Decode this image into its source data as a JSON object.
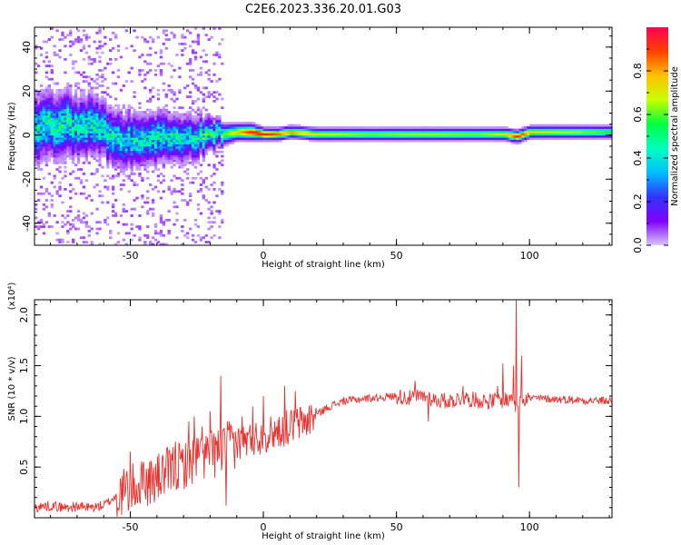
{
  "figure": {
    "title": "C2E6.2023.336.20.01.G03"
  },
  "chart_data": [
    {
      "type": "heatmap",
      "xlabel": "Height of straight line (km)",
      "ylabel": "Frequency (Hz)",
      "xlim": [
        -86,
        131
      ],
      "ylim": [
        -50,
        49
      ],
      "xticks": [
        "-50",
        "0",
        "50",
        "100"
      ],
      "yticks": [
        "40",
        "20",
        "0",
        "-20",
        "-40"
      ],
      "xtick_values": [
        -50,
        0,
        50,
        100
      ],
      "ytick_values": [
        40,
        20,
        0,
        -20,
        -40
      ],
      "colorbar": {
        "label": "Normalized spectral amplitude",
        "range": [
          0,
          1
        ],
        "ticks": [
          "0.0",
          "0.2",
          "0.4",
          "0.6",
          "0.8"
        ],
        "tick_values": [
          0,
          0.2,
          0.4,
          0.6,
          0.8
        ],
        "colormap": [
          "#d9c6ff",
          "#8000ff",
          "#3333ff",
          "#00bfff",
          "#00ffc0",
          "#00ff40",
          "#c8ff00",
          "#ffc000",
          "#ff4000",
          "#ff0055"
        ]
      },
      "ridge": {
        "x": [
          -86,
          -80,
          -75,
          -70,
          -65,
          -60,
          -55,
          -50,
          -45,
          -40,
          -35,
          -30,
          -25,
          -20,
          -15,
          -10,
          -5,
          0,
          5,
          10,
          20,
          40,
          60,
          80,
          90,
          95,
          100,
          131
        ],
        "y": [
          2,
          4,
          5,
          3,
          4,
          1,
          -2,
          -3,
          -2,
          -1,
          -1,
          -2,
          -1,
          0,
          0,
          1,
          1,
          0,
          0,
          1,
          0,
          0,
          0,
          0,
          0,
          -1,
          1,
          1
        ],
        "amplitude": [
          0.45,
          0.5,
          0.5,
          0.45,
          0.5,
          0.45,
          0.45,
          0.45,
          0.45,
          0.5,
          0.45,
          0.45,
          0.5,
          0.55,
          0.6,
          0.75,
          0.95,
          0.95,
          0.85,
          0.8,
          0.7,
          0.6,
          0.65,
          0.6,
          0.7,
          0.95,
          0.75,
          0.55
        ],
        "spread_hz": [
          15,
          14,
          14,
          13,
          13,
          12,
          12,
          12,
          11,
          11,
          10,
          10,
          9,
          7,
          5,
          4,
          4,
          3,
          3,
          3,
          3,
          3,
          3,
          3,
          3,
          3,
          3,
          3
        ]
      }
    },
    {
      "type": "line",
      "xlabel": "Height of straight line (km)",
      "ylabel": "SNR (10 * v/v)",
      "scale_note": "(x10⁴)",
      "xlim": [
        -86,
        131
      ],
      "ylim": [
        0,
        2.15
      ],
      "xticks": [
        "-50",
        "0",
        "50",
        "100"
      ],
      "yticks": [
        "0.5",
        "1.0",
        "1.5",
        "2.0"
      ],
      "xtick_values": [
        -50,
        0,
        50,
        100
      ],
      "ytick_values": [
        0.5,
        1.0,
        1.5,
        2.0
      ],
      "series": [
        {
          "color": "#e8322f",
          "x": [
            -86,
            -80,
            -75,
            -70,
            -65,
            -60,
            -56,
            -52,
            -48,
            -44,
            -40,
            -36,
            -32,
            -28,
            -24,
            -20,
            -16,
            -14,
            -12,
            -8,
            -4,
            0,
            4,
            8,
            10,
            12,
            16,
            20,
            25,
            30,
            40,
            50,
            55,
            60,
            65,
            70,
            75,
            80,
            85,
            90,
            92,
            94,
            95,
            96,
            98,
            100,
            110,
            120,
            131
          ],
          "y": [
            0.1,
            0.12,
            0.1,
            0.11,
            0.1,
            0.12,
            0.2,
            0.26,
            0.3,
            0.35,
            0.38,
            0.45,
            0.5,
            0.55,
            0.6,
            0.62,
            0.65,
            0.7,
            0.72,
            0.75,
            0.78,
            0.8,
            0.85,
            0.88,
            0.9,
            0.92,
            0.95,
            1.02,
            1.1,
            1.15,
            1.18,
            1.2,
            1.18,
            1.2,
            1.16,
            1.15,
            1.18,
            1.16,
            1.15,
            1.16,
            1.18,
            1.22,
            1.0,
            1.2,
            1.18,
            1.18,
            1.17,
            1.16,
            1.15
          ]
        }
      ],
      "spikes": {
        "x": [
          -50,
          -45,
          -38,
          -33,
          -28,
          -26,
          -23,
          -20,
          -18,
          -16,
          -14,
          -12,
          -8,
          -4,
          0,
          3,
          8,
          10,
          12,
          15,
          57,
          62,
          75,
          88,
          90,
          92,
          94,
          95,
          96,
          97
        ],
        "y": [
          0.65,
          0.55,
          0.6,
          0.75,
          0.95,
          1.0,
          0.9,
          1.05,
          0.8,
          1.4,
          0.12,
          0.9,
          1.0,
          1.1,
          1.2,
          0.9,
          1.3,
          0.85,
          1.25,
          0.9,
          1.35,
          0.95,
          1.3,
          1.3,
          1.52,
          1.1,
          1.5,
          2.15,
          0.3,
          1.6
        ]
      }
    }
  ]
}
